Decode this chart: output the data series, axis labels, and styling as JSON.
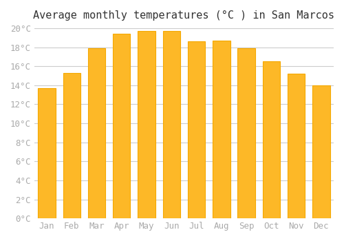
{
  "title": "Average monthly temperatures (°C ) in San Marcos",
  "months": [
    "Jan",
    "Feb",
    "Mar",
    "Apr",
    "May",
    "Jun",
    "Jul",
    "Aug",
    "Sep",
    "Oct",
    "Nov",
    "Dec"
  ],
  "values": [
    13.7,
    15.3,
    17.9,
    19.4,
    19.7,
    19.7,
    18.6,
    18.7,
    17.9,
    16.5,
    15.2,
    14.0
  ],
  "bar_color_face": "#FDB827",
  "bar_color_edge": "#F5A800",
  "background_color": "#ffffff",
  "grid_color": "#cccccc",
  "ylim": [
    0,
    20
  ],
  "ytick_step": 2,
  "title_fontsize": 11,
  "tick_fontsize": 9,
  "tick_label_color": "#aaaaaa",
  "title_color": "#333333"
}
